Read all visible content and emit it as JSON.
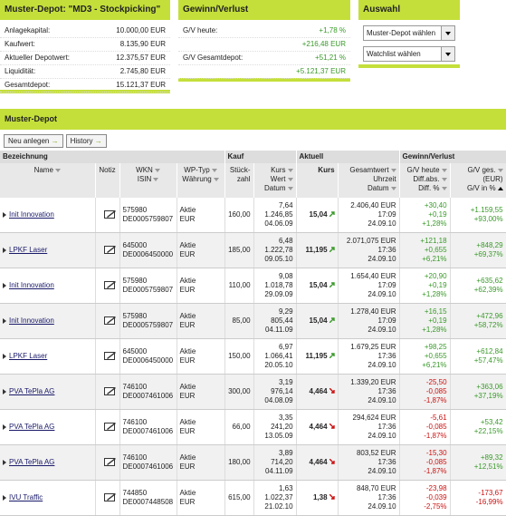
{
  "depot": {
    "title": "Muster-Depot: \"MD3 - Stockpicking\"",
    "rows": [
      [
        "Anlagekapital:",
        "10.000,00 EUR"
      ],
      [
        "Kaufwert:",
        "8.135,90 EUR"
      ],
      [
        "Aktueller Depotwert:",
        "12.375,57 EUR"
      ],
      [
        "Liquidität:",
        "2.745,80 EUR"
      ],
      [
        "Gesamtdepot:",
        "15.121,37 EUR"
      ]
    ]
  },
  "gv": {
    "title": "Gewinn/Verlust",
    "rows": [
      {
        "label": "G/V heute:",
        "values": [
          "+1,78 %",
          "+216,48 EUR"
        ]
      },
      {
        "label": "G/V Gesamtdepot:",
        "values": [
          "+51,21 %",
          "+5.121,37 EUR"
        ]
      }
    ]
  },
  "auswahl": {
    "title": "Auswahl",
    "selects": [
      "Muster-Depot wählen",
      "Watchlist wählen"
    ]
  },
  "table": {
    "title": "Muster-Depot",
    "buttons": [
      "Neu anlegen",
      "History"
    ],
    "groups": [
      "Bezeichnung",
      "Kauf",
      "Aktuell",
      "Gewinn/Verlust"
    ],
    "columns": [
      [
        "Name"
      ],
      [
        "Notiz"
      ],
      [
        "WKN",
        "ISIN"
      ],
      [
        "WP-Typ",
        "Währung"
      ],
      [
        "Stück-",
        "zahl"
      ],
      [
        "Kurs",
        "Wert",
        "Datum"
      ],
      [
        "Kurs"
      ],
      [
        "Gesamtwert",
        "Uhrzeit",
        "Datum"
      ],
      [
        "G/V heute",
        "Diff.abs.",
        "Diff. %"
      ],
      [
        "G/V ges.",
        "(EUR)",
        "G/V in %"
      ]
    ],
    "rows": [
      {
        "name": "Init Innovation",
        "wkn": "575980",
        "isin": "DE0005759807",
        "typ": "Aktie",
        "waehrung": "EUR",
        "stueck": "160,00",
        "kurs": "7,64",
        "wert": "1.246,85",
        "datum": "04.06.09",
        "aktuell": "15,04",
        "gesamtwert": "2.406,40 EUR",
        "uhrzeit": "17:09",
        "datum2": "24.09.10",
        "gv_heute": "+30,40",
        "diff_abs": "+0,19",
        "diff_pct": "+1,28%",
        "gv_ges": "+1.159,55",
        "gv_pct": "+93,00%"
      },
      {
        "name": "LPKF Laser",
        "wkn": "645000",
        "isin": "DE0006450000",
        "typ": "Aktie",
        "waehrung": "EUR",
        "stueck": "185,00",
        "kurs": "6,48",
        "wert": "1.222,78",
        "datum": "09.05.10",
        "aktuell": "11,195",
        "gesamtwert": "2.071,075 EUR",
        "uhrzeit": "17:36",
        "datum2": "24.09.10",
        "gv_heute": "+121,18",
        "diff_abs": "+0,655",
        "diff_pct": "+6,21%",
        "gv_ges": "+848,29",
        "gv_pct": "+69,37%"
      },
      {
        "name": "Init Innovation",
        "wkn": "575980",
        "isin": "DE0005759807",
        "typ": "Aktie",
        "waehrung": "EUR",
        "stueck": "110,00",
        "kurs": "9,08",
        "wert": "1.018,78",
        "datum": "29.09.09",
        "aktuell": "15,04",
        "gesamtwert": "1.654,40 EUR",
        "uhrzeit": "17:09",
        "datum2": "24.09.10",
        "gv_heute": "+20,90",
        "diff_abs": "+0,19",
        "diff_pct": "+1,28%",
        "gv_ges": "+635,62",
        "gv_pct": "+62,39%"
      },
      {
        "name": "Init Innovation",
        "wkn": "575980",
        "isin": "DE0005759807",
        "typ": "Aktie",
        "waehrung": "EUR",
        "stueck": "85,00",
        "kurs": "9,29",
        "wert": "805,44",
        "datum": "04.11.09",
        "aktuell": "15,04",
        "gesamtwert": "1.278,40 EUR",
        "uhrzeit": "17:09",
        "datum2": "24.09.10",
        "gv_heute": "+16,15",
        "diff_abs": "+0,19",
        "diff_pct": "+1,28%",
        "gv_ges": "+472,96",
        "gv_pct": "+58,72%"
      },
      {
        "name": "LPKF Laser",
        "wkn": "645000",
        "isin": "DE0006450000",
        "typ": "Aktie",
        "waehrung": "EUR",
        "stueck": "150,00",
        "kurs": "6,97",
        "wert": "1.066,41",
        "datum": "20.05.10",
        "aktuell": "11,195",
        "gesamtwert": "1.679,25 EUR",
        "uhrzeit": "17:36",
        "datum2": "24.09.10",
        "gv_heute": "+98,25",
        "diff_abs": "+0,655",
        "diff_pct": "+6,21%",
        "gv_ges": "+612,84",
        "gv_pct": "+57,47%"
      },
      {
        "name": "PVA TePla AG",
        "wkn": "746100",
        "isin": "DE0007461006",
        "typ": "Aktie",
        "waehrung": "EUR",
        "stueck": "300,00",
        "kurs": "3,19",
        "wert": "976,14",
        "datum": "04.08.09",
        "aktuell": "4,464",
        "gesamtwert": "1.339,20 EUR",
        "uhrzeit": "17:36",
        "datum2": "24.09.10",
        "gv_heute": "-25,50",
        "diff_abs": "-0,085",
        "diff_pct": "-1,87%",
        "gv_ges": "+363,06",
        "gv_pct": "+37,19%"
      },
      {
        "name": "PVA TePla AG",
        "wkn": "746100",
        "isin": "DE0007461006",
        "typ": "Aktie",
        "waehrung": "EUR",
        "stueck": "66,00",
        "kurs": "3,35",
        "wert": "241,20",
        "datum": "13.05.09",
        "aktuell": "4,464",
        "gesamtwert": "294,624 EUR",
        "uhrzeit": "17:36",
        "datum2": "24.09.10",
        "gv_heute": "-5,61",
        "diff_abs": "-0,085",
        "diff_pct": "-1,87%",
        "gv_ges": "+53,42",
        "gv_pct": "+22,15%"
      },
      {
        "name": "PVA TePla AG",
        "wkn": "746100",
        "isin": "DE0007461006",
        "typ": "Aktie",
        "waehrung": "EUR",
        "stueck": "180,00",
        "kurs": "3,89",
        "wert": "714,20",
        "datum": "04.11.09",
        "aktuell": "4,464",
        "gesamtwert": "803,52 EUR",
        "uhrzeit": "17:36",
        "datum2": "24.09.10",
        "gv_heute": "-15,30",
        "diff_abs": "-0,085",
        "diff_pct": "-1,87%",
        "gv_ges": "+89,32",
        "gv_pct": "+12,51%"
      },
      {
        "name": "IVU Traffic",
        "wkn": "744850",
        "isin": "DE0007448508",
        "typ": "Aktie",
        "waehrung": "EUR",
        "stueck": "615,00",
        "kurs": "1,63",
        "wert": "1.022,37",
        "datum": "21.02.10",
        "aktuell": "1,38",
        "gesamtwert": "848,70 EUR",
        "uhrzeit": "17:36",
        "datum2": "24.09.10",
        "gv_heute": "-23,98",
        "diff_abs": "-0,039",
        "diff_pct": "-2,75%",
        "gv_ges": "-173,67",
        "gv_pct": "-16,99%"
      }
    ]
  }
}
